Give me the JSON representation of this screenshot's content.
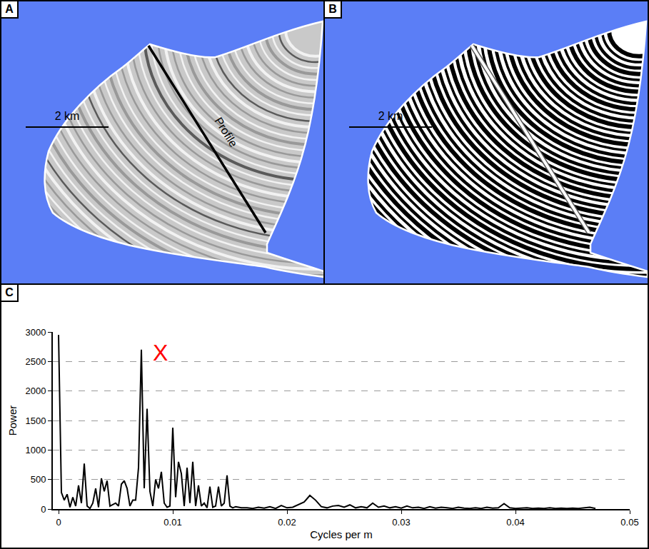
{
  "panel_letters": [
    "A",
    "B",
    "C"
  ],
  "map_panels": [
    {
      "scale_bar": "2 km",
      "profile": "Profile",
      "style": "grayscale"
    },
    {
      "scale_bar": "2 km",
      "style": "binary"
    }
  ],
  "chart_data": {
    "type": "line",
    "xlabel": "Cycles per m",
    "ylabel": "Power",
    "color": "#000000",
    "grid": true,
    "xlim": [
      -0.0005,
      0.05
    ],
    "xticks": [
      0,
      0.01,
      0.02,
      0.03,
      0.04,
      0.05
    ],
    "ylim": [
      0,
      3000
    ],
    "yticks": [
      0,
      500,
      1000,
      1500,
      2000,
      2500,
      3000
    ],
    "annotations": [
      {
        "text": "X",
        "x": 0.0089,
        "y": 2650,
        "color": "#ff0000"
      }
    ],
    "x": [
      0,
      0.00025,
      0.0005,
      0.00075,
      0.001,
      0.00125,
      0.0015,
      0.00175,
      0.002,
      0.00225,
      0.0025,
      0.00275,
      0.003,
      0.00325,
      0.0035,
      0.00375,
      0.004,
      0.00425,
      0.0045,
      0.00475,
      0.005,
      0.00525,
      0.0055,
      0.00575,
      0.006,
      0.00625,
      0.0065,
      0.00675,
      0.007,
      0.00725,
      0.0075,
      0.00775,
      0.008,
      0.00825,
      0.0085,
      0.00875,
      0.009,
      0.00925,
      0.0095,
      0.00975,
      0.01,
      0.01025,
      0.0105,
      0.01075,
      0.011,
      0.01125,
      0.0115,
      0.01175,
      0.012,
      0.01225,
      0.0125,
      0.01275,
      0.013,
      0.01325,
      0.0135,
      0.01375,
      0.014,
      0.01425,
      0.0145,
      0.01475,
      0.015,
      0.01525,
      0.0155,
      0.01575,
      0.016,
      0.0165,
      0.017,
      0.0175,
      0.018,
      0.0185,
      0.019,
      0.0195,
      0.02,
      0.0205,
      0.021,
      0.0215,
      0.022,
      0.0225,
      0.023,
      0.0235,
      0.024,
      0.0245,
      0.025,
      0.0255,
      0.026,
      0.0265,
      0.027,
      0.0275,
      0.028,
      0.0285,
      0.029,
      0.0295,
      0.03,
      0.0305,
      0.031,
      0.0315,
      0.032,
      0.0325,
      0.033,
      0.0335,
      0.034,
      0.0345,
      0.035,
      0.0355,
      0.036,
      0.0365,
      0.037,
      0.0375,
      0.038,
      0.0385,
      0.039,
      0.0395,
      0.04,
      0.0405,
      0.041,
      0.0415,
      0.042,
      0.0425,
      0.043,
      0.0435,
      0.044,
      0.0445,
      0.045,
      0.0455,
      0.046,
      0.0465,
      0.047
    ],
    "values": [
      2950,
      280,
      150,
      250,
      30,
      200,
      50,
      400,
      100,
      770,
      50,
      10,
      100,
      350,
      30,
      520,
      300,
      480,
      50,
      80,
      100,
      50,
      420,
      480,
      350,
      50,
      150,
      150,
      700,
      2700,
      350,
      1700,
      300,
      50,
      500,
      350,
      630,
      100,
      30,
      50,
      1380,
      200,
      800,
      600,
      50,
      700,
      100,
      800,
      50,
      400,
      50,
      100,
      20,
      380,
      30,
      50,
      380,
      50,
      100,
      570,
      50,
      20,
      40,
      30,
      20,
      20,
      10,
      30,
      15,
      40,
      10,
      60,
      20,
      30,
      80,
      120,
      230,
      150,
      40,
      20,
      50,
      60,
      30,
      70,
      20,
      40,
      20,
      100,
      30,
      50,
      20,
      40,
      15,
      50,
      20,
      30,
      10,
      40,
      15,
      30,
      20,
      10,
      30,
      15,
      10,
      20,
      10,
      30,
      15,
      20,
      90,
      20,
      10,
      15,
      20,
      10,
      15,
      10,
      20,
      10,
      15,
      10,
      15,
      10,
      20,
      30,
      10
    ]
  }
}
